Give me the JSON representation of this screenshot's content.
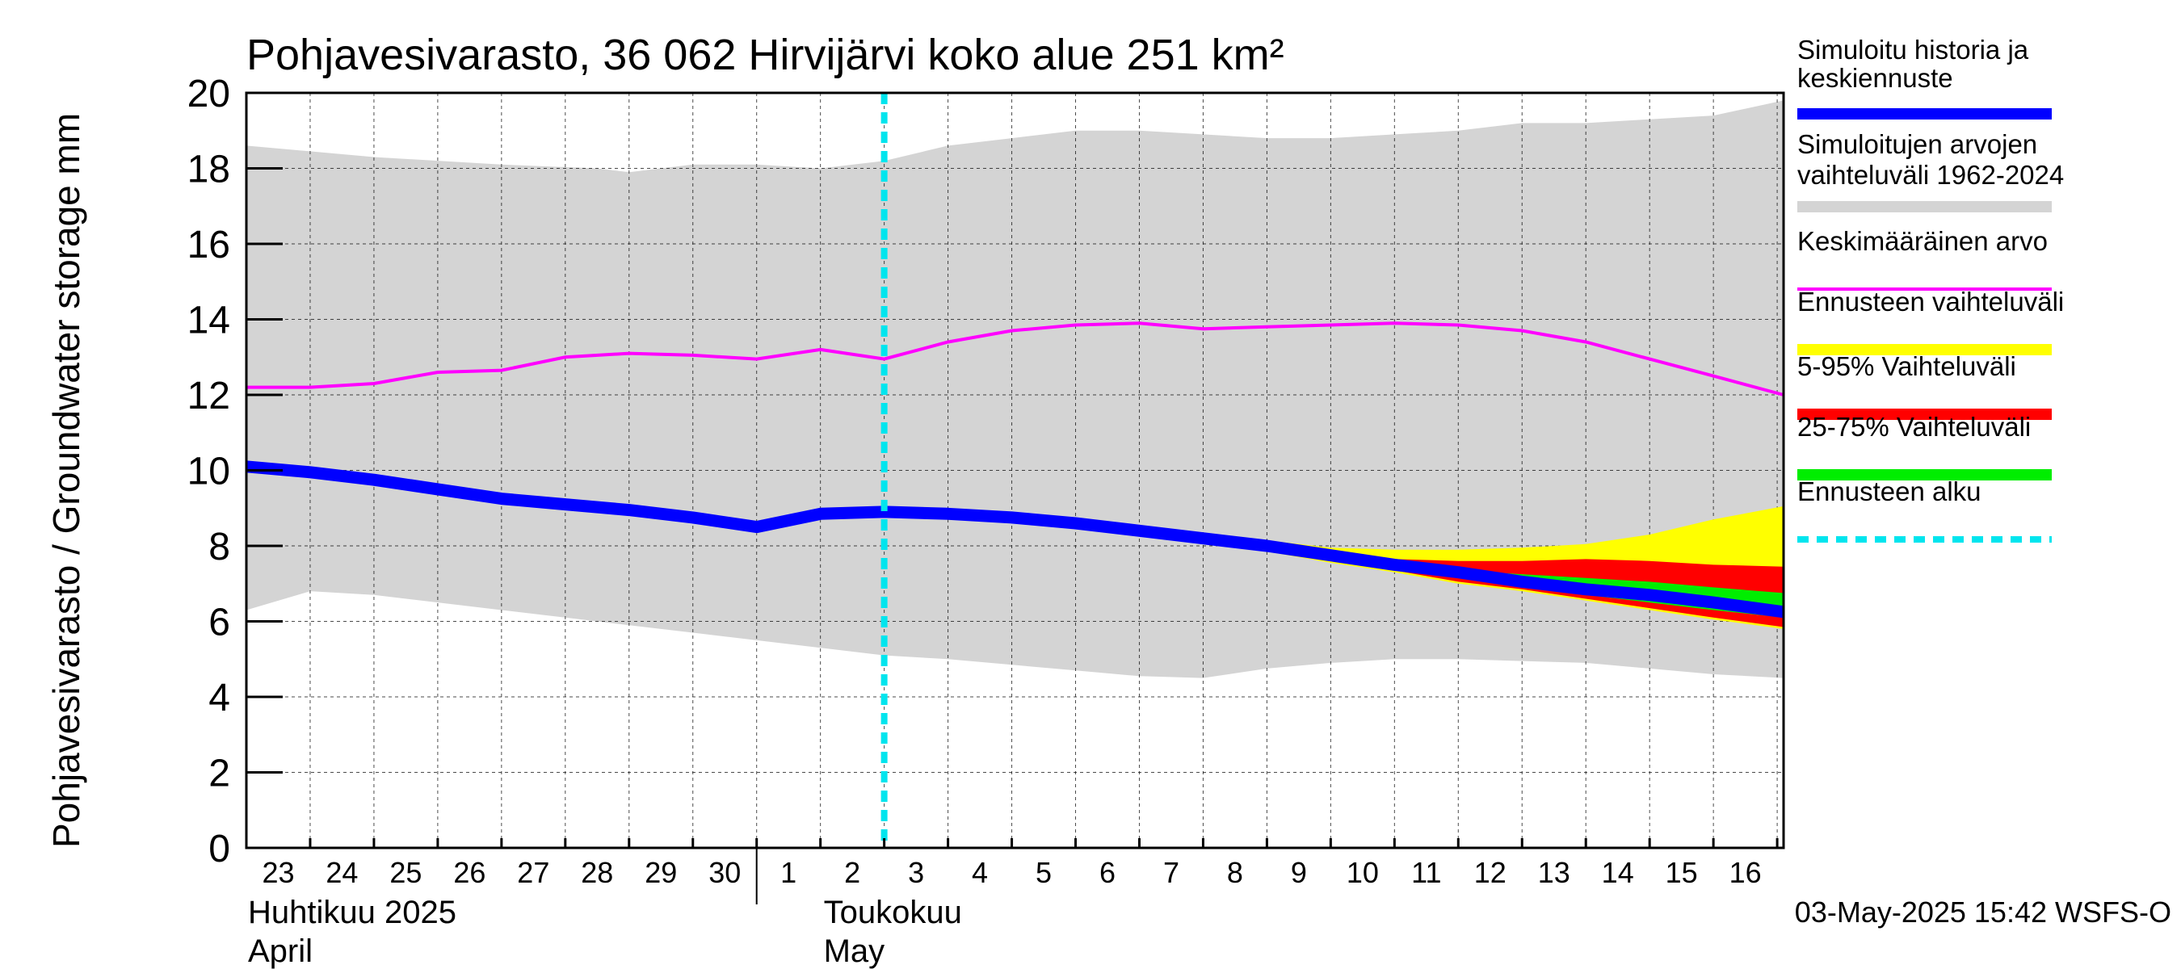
{
  "chart_data": {
    "type": "area",
    "title": "Pohjavesivarasto, 36 062 Hirvijärvi koko alue 251 km²",
    "ylabel": "Pohjavesivarasto / Groundwater storage   mm",
    "ylim": [
      0,
      20
    ],
    "yticks": [
      "0",
      "2",
      "4",
      "6",
      "8",
      "10",
      "12",
      "14",
      "16",
      "18",
      "20"
    ],
    "x_range_days": [
      0,
      24.1
    ],
    "day_labels": [
      "23",
      "24",
      "25",
      "26",
      "27",
      "28",
      "29",
      "30",
      "1",
      "2",
      "3",
      "4",
      "5",
      "6",
      "7",
      "8",
      "9",
      "10",
      "11",
      "12",
      "13",
      "14",
      "15",
      "16"
    ],
    "month_labels": [
      {
        "fi": "Huhtikuu  2025",
        "en": "April"
      },
      {
        "fi": "Toukokuu",
        "en": "May"
      }
    ],
    "forecast_start_x": 10,
    "timestamp": "03-May-2025 15:42 WSFS-O",
    "colors": {
      "history": "#0000ff",
      "sim_range": "#d4d4d4",
      "mean": "#ff00ff",
      "forecast_range": "#ffff00",
      "p5_95": "#ff0000",
      "p25_75": "#00ee00",
      "forecast_start": "#00e5ee"
    },
    "legend": [
      {
        "label": "Simuloitu historia ja keskiennuste",
        "key": "history"
      },
      {
        "label": "Simuloitujen arvojen vaihteluväli 1962-2024",
        "key": "sim_range"
      },
      {
        "label": "Keskimääräinen arvo",
        "key": "mean"
      },
      {
        "label": "Ennusteen vaihteluväli",
        "key": "forecast_range"
      },
      {
        "label": "5-95% Vaihteluväli",
        "key": "p5_95"
      },
      {
        "label": "25-75% Vaihteluväli",
        "key": "p25_75"
      },
      {
        "label": "Ennusteen alku",
        "key": "forecast_start"
      }
    ],
    "series": {
      "sim_range_upper": [
        [
          0,
          18.6
        ],
        [
          2,
          18.3
        ],
        [
          4,
          18.1
        ],
        [
          5.5,
          18.0
        ],
        [
          6,
          17.9
        ],
        [
          7,
          18.1
        ],
        [
          8,
          18.1
        ],
        [
          9,
          18.0
        ],
        [
          10,
          18.2
        ],
        [
          11,
          18.6
        ],
        [
          12,
          18.8
        ],
        [
          13,
          19.0
        ],
        [
          14,
          19.0
        ],
        [
          15,
          18.9
        ],
        [
          16,
          18.8
        ],
        [
          17,
          18.8
        ],
        [
          18,
          18.9
        ],
        [
          19,
          19.0
        ],
        [
          20,
          19.2
        ],
        [
          21,
          19.2
        ],
        [
          22,
          19.3
        ],
        [
          23,
          19.4
        ],
        [
          24.1,
          19.8
        ]
      ],
      "sim_range_lower": [
        [
          0,
          6.3
        ],
        [
          1,
          6.8
        ],
        [
          2,
          6.7
        ],
        [
          3,
          6.5
        ],
        [
          4,
          6.3
        ],
        [
          5,
          6.1
        ],
        [
          6,
          5.9
        ],
        [
          7,
          5.7
        ],
        [
          8,
          5.5
        ],
        [
          9,
          5.3
        ],
        [
          10,
          5.1
        ],
        [
          11,
          5.0
        ],
        [
          12,
          4.85
        ],
        [
          13,
          4.7
        ],
        [
          14,
          4.55
        ],
        [
          15,
          4.5
        ],
        [
          16,
          4.75
        ],
        [
          17,
          4.9
        ],
        [
          18,
          5.0
        ],
        [
          19,
          5.0
        ],
        [
          20,
          4.95
        ],
        [
          21,
          4.9
        ],
        [
          22,
          4.75
        ],
        [
          23,
          4.6
        ],
        [
          24.1,
          4.5
        ]
      ],
      "mean": [
        [
          0,
          12.2
        ],
        [
          1,
          12.2
        ],
        [
          2,
          12.3
        ],
        [
          3,
          12.6
        ],
        [
          4,
          12.65
        ],
        [
          5,
          13.0
        ],
        [
          6,
          13.1
        ],
        [
          7,
          13.05
        ],
        [
          8,
          12.95
        ],
        [
          9,
          13.2
        ],
        [
          10,
          12.95
        ],
        [
          11,
          13.4
        ],
        [
          12,
          13.7
        ],
        [
          13,
          13.85
        ],
        [
          14,
          13.9
        ],
        [
          15,
          13.75
        ],
        [
          16,
          13.8
        ],
        [
          17,
          13.85
        ],
        [
          18,
          13.9
        ],
        [
          19,
          13.85
        ],
        [
          20,
          13.7
        ],
        [
          21,
          13.4
        ],
        [
          22,
          12.95
        ],
        [
          23,
          12.5
        ],
        [
          24.1,
          12.0
        ]
      ],
      "history": [
        [
          0,
          10.1
        ],
        [
          1,
          9.95
        ],
        [
          2,
          9.75
        ],
        [
          3,
          9.5
        ],
        [
          4,
          9.25
        ],
        [
          5,
          9.1
        ],
        [
          6,
          8.95
        ],
        [
          7,
          8.75
        ],
        [
          8,
          8.5
        ],
        [
          9,
          8.85
        ],
        [
          10,
          8.9
        ],
        [
          11,
          8.85
        ],
        [
          12,
          8.75
        ],
        [
          13,
          8.6
        ],
        [
          14,
          8.4
        ],
        [
          15,
          8.2
        ],
        [
          16,
          8.0
        ],
        [
          17,
          7.75
        ],
        [
          18,
          7.5
        ],
        [
          19,
          7.3
        ],
        [
          20,
          7.05
        ],
        [
          21,
          6.85
        ],
        [
          22,
          6.7
        ],
        [
          23,
          6.5
        ],
        [
          24.1,
          6.25
        ]
      ],
      "forecast_range_upper": [
        [
          13,
          8.65
        ],
        [
          14,
          8.5
        ],
        [
          15,
          8.3
        ],
        [
          16,
          8.15
        ],
        [
          17,
          7.95
        ],
        [
          18,
          7.9
        ],
        [
          19,
          7.9
        ],
        [
          20,
          7.95
        ],
        [
          21,
          8.05
        ],
        [
          22,
          8.3
        ],
        [
          23,
          8.7
        ],
        [
          24.1,
          9.05
        ]
      ],
      "forecast_range_lower": [
        [
          13,
          8.55
        ],
        [
          14,
          8.3
        ],
        [
          15,
          8.1
        ],
        [
          16,
          7.85
        ],
        [
          17,
          7.55
        ],
        [
          18,
          7.3
        ],
        [
          19,
          7.0
        ],
        [
          20,
          6.8
        ],
        [
          21,
          6.55
        ],
        [
          22,
          6.3
        ],
        [
          23,
          6.05
        ],
        [
          24.1,
          5.8
        ]
      ],
      "p5_95_upper": [
        [
          13,
          8.6
        ],
        [
          14,
          8.45
        ],
        [
          15,
          8.25
        ],
        [
          16,
          8.05
        ],
        [
          17,
          7.85
        ],
        [
          18,
          7.65
        ],
        [
          19,
          7.6
        ],
        [
          20,
          7.6
        ],
        [
          21,
          7.65
        ],
        [
          22,
          7.6
        ],
        [
          23,
          7.5
        ],
        [
          24.1,
          7.45
        ]
      ],
      "p5_95_lower": [
        [
          13,
          8.55
        ],
        [
          14,
          8.35
        ],
        [
          15,
          8.1
        ],
        [
          16,
          7.9
        ],
        [
          17,
          7.6
        ],
        [
          18,
          7.35
        ],
        [
          19,
          7.05
        ],
        [
          20,
          6.85
        ],
        [
          21,
          6.6
        ],
        [
          22,
          6.35
        ],
        [
          23,
          6.1
        ],
        [
          24.1,
          5.85
        ]
      ],
      "p25_75_upper": [
        [
          13,
          8.6
        ],
        [
          14,
          8.4
        ],
        [
          15,
          8.2
        ],
        [
          16,
          8.0
        ],
        [
          17,
          7.8
        ],
        [
          18,
          7.55
        ],
        [
          19,
          7.35
        ],
        [
          20,
          7.25
        ],
        [
          21,
          7.15
        ],
        [
          22,
          7.05
        ],
        [
          23,
          6.9
        ],
        [
          24.1,
          6.75
        ]
      ],
      "p25_75_lower": [
        [
          13,
          8.55
        ],
        [
          14,
          8.35
        ],
        [
          15,
          8.15
        ],
        [
          16,
          7.95
        ],
        [
          17,
          7.7
        ],
        [
          18,
          7.45
        ],
        [
          19,
          7.2
        ],
        [
          20,
          6.95
        ],
        [
          21,
          6.7
        ],
        [
          22,
          6.5
        ],
        [
          23,
          6.3
        ],
        [
          24.1,
          6.1
        ]
      ]
    }
  }
}
